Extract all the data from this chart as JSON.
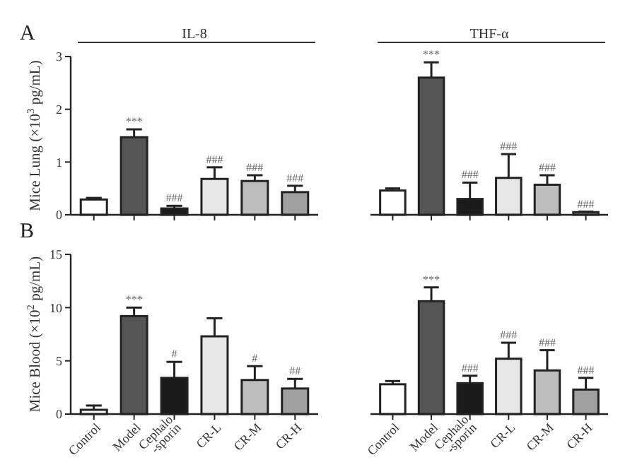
{
  "chart_data": [
    {
      "type": "bar",
      "title": "IL-8",
      "ylabel": "Mice Lung (×10$^{3}$ pg/mL)",
      "categories": [
        "Control",
        "Model",
        "Cephalo -sporin",
        "CR-L",
        "CR-M",
        "CR-H"
      ],
      "values": [
        0.29,
        1.47,
        0.12,
        0.68,
        0.64,
        0.43
      ],
      "errors": [
        [
          0.29,
          0.32
        ],
        [
          1.47,
          1.62
        ],
        [
          0.12,
          0.17
        ],
        [
          0.68,
          0.9
        ],
        [
          0.64,
          0.75
        ],
        [
          0.43,
          0.55
        ]
      ],
      "colors": [
        "#ffffff",
        "#555555",
        "#1a1a1a",
        "#e6e6e6",
        "#bdbdbd",
        "#a0a0a0"
      ],
      "ylim": [
        0,
        3
      ],
      "yticks": [
        0,
        1,
        2,
        3
      ],
      "tick_labels": "y",
      "annotations": [
        "A",
        {
          "text": "***",
          "x": "Model",
          "y": 1.62
        },
        {
          "text": "###",
          "x": "Cephalo -sporin",
          "y": 0.17
        },
        {
          "text": "###",
          "x": "CR-L",
          "y": 0.9
        },
        {
          "text": "###",
          "x": "CR-M",
          "y": 0.75
        },
        {
          "text": "###",
          "x": "CR-H",
          "y": 0.55
        }
      ]
    },
    {
      "type": "bar",
      "title": "THF-α",
      "categories": [
        "Control",
        "Model",
        "Cephalo -sporin",
        "CR-L",
        "CR-M",
        "CR-H"
      ],
      "values": [
        0.46,
        2.6,
        0.3,
        0.7,
        0.57,
        0.05
      ],
      "errors": [
        [
          0.46,
          0.5
        ],
        [
          2.6,
          2.89
        ],
        [
          0.3,
          0.61
        ],
        [
          0.7,
          1.15
        ],
        [
          0.57,
          0.75
        ],
        [
          0.05,
          0.06
        ]
      ],
      "colors": [
        "#ffffff",
        "#555555",
        "#1a1a1a",
        "#e6e6e6",
        "#bdbdbd",
        "#a0a0a0"
      ],
      "ylim": [
        0,
        3
      ],
      "tick_labels": false,
      "annotations": [
        {
          "text": "***",
          "x": "Model",
          "y": 2.89
        },
        {
          "text": "###",
          "x": "Cephalo -sporin",
          "y": 0.61
        },
        {
          "text": "###",
          "x": "CR-L",
          "y": 1.15
        },
        {
          "text": "###",
          "x": "CR-M",
          "y": 0.75
        },
        {
          "text": "###",
          "x": "CR-H",
          "y": 0.06
        }
      ]
    },
    {
      "type": "bar",
      "ylabel": "Mice Blood (×10$^{2}$ pg/mL)",
      "categories": [
        "Control",
        "Model",
        "Cephalo -sporin",
        "CR-L",
        "CR-M",
        "CR-H"
      ],
      "values": [
        0.4,
        9.2,
        3.4,
        7.3,
        3.2,
        2.4
      ],
      "errors": [
        [
          0.4,
          0.8
        ],
        [
          9.2,
          10
        ],
        [
          3.4,
          4.9
        ],
        [
          7.3,
          9
        ],
        [
          3.2,
          4.5
        ],
        [
          2.4,
          3.3
        ]
      ],
      "colors": [
        "#ffffff",
        "#555555",
        "#1a1a1a",
        "#e6e6e6",
        "#bdbdbd",
        "#a0a0a0"
      ],
      "ylim": [
        0,
        15
      ],
      "yticks": [
        0,
        5,
        10,
        15
      ],
      "annotations": [
        "B",
        {
          "text": "***",
          "x": "Model",
          "y": 10
        },
        {
          "text": "#",
          "x": "Cephalo -sporin",
          "y": 4.9
        },
        {
          "text": "#",
          "x": "CR-M",
          "y": 4.5
        },
        {
          "text": "##",
          "x": "CR-H",
          "y": 3.3
        }
      ]
    },
    {
      "type": "bar",
      "categories": [
        "Control",
        "Model",
        "Cephalo -sporin",
        "CR-L",
        "CR-M",
        "CR-H"
      ],
      "values": [
        2.8,
        10.6,
        2.9,
        5.2,
        4.1,
        2.3
      ],
      "errors": [
        [
          2.8,
          3.1
        ],
        [
          10.6,
          11.9
        ],
        [
          2.9,
          3.6
        ],
        [
          5.2,
          6.7
        ],
        [
          4.1,
          6
        ],
        [
          2.3,
          3.4
        ]
      ],
      "colors": [
        "#ffffff",
        "#555555",
        "#1a1a1a",
        "#e6e6e6",
        "#bdbdbd",
        "#a0a0a0"
      ],
      "ylim": [
        0,
        15
      ],
      "tick_labels": "x",
      "annotations": [
        {
          "text": "***",
          "x": "Model",
          "y": 11.9
        },
        {
          "text": "###",
          "x": "Cephalo -sporin",
          "y": 3.6
        },
        {
          "text": "###",
          "x": "CR-L",
          "y": 6.7
        },
        {
          "text": "###",
          "x": "CR-M",
          "y": 6
        },
        {
          "text": "###",
          "x": "CR-H",
          "y": 3.4
        }
      ]
    }
  ]
}
